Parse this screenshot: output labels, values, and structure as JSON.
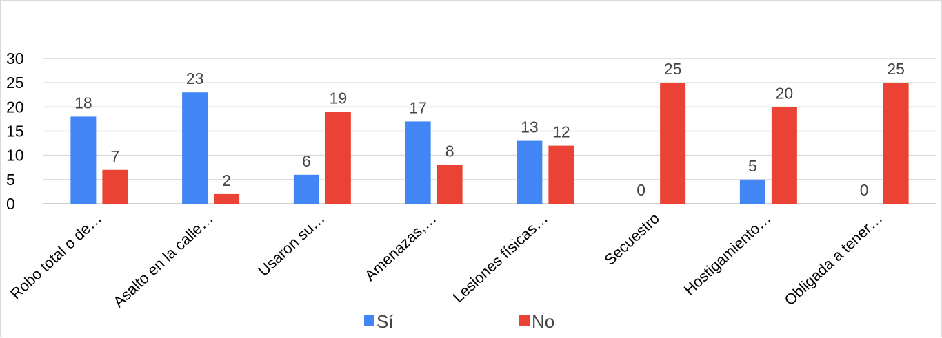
{
  "chart_data": {
    "type": "bar",
    "categories": [
      "Robo total o de…",
      "Asalto en la calle…",
      "Usaron su…",
      "Amenazas,…",
      "Lesiones físicas…",
      "Secuestro",
      "Hostigamiento…",
      "Obligada a tener…"
    ],
    "series": [
      {
        "name": "Sí",
        "color": "#4285f4",
        "values": [
          18,
          23,
          6,
          17,
          13,
          0,
          5,
          0
        ]
      },
      {
        "name": "No",
        "color": "#ea4335",
        "values": [
          7,
          2,
          19,
          8,
          12,
          25,
          20,
          25
        ]
      }
    ],
    "yticks": [
      "0",
      "5",
      "10",
      "15",
      "20",
      "25",
      "30"
    ],
    "ylim": [
      0,
      30
    ],
    "grid": true,
    "legend_position": "bottom",
    "title": "",
    "xlabel": "",
    "ylabel": ""
  }
}
